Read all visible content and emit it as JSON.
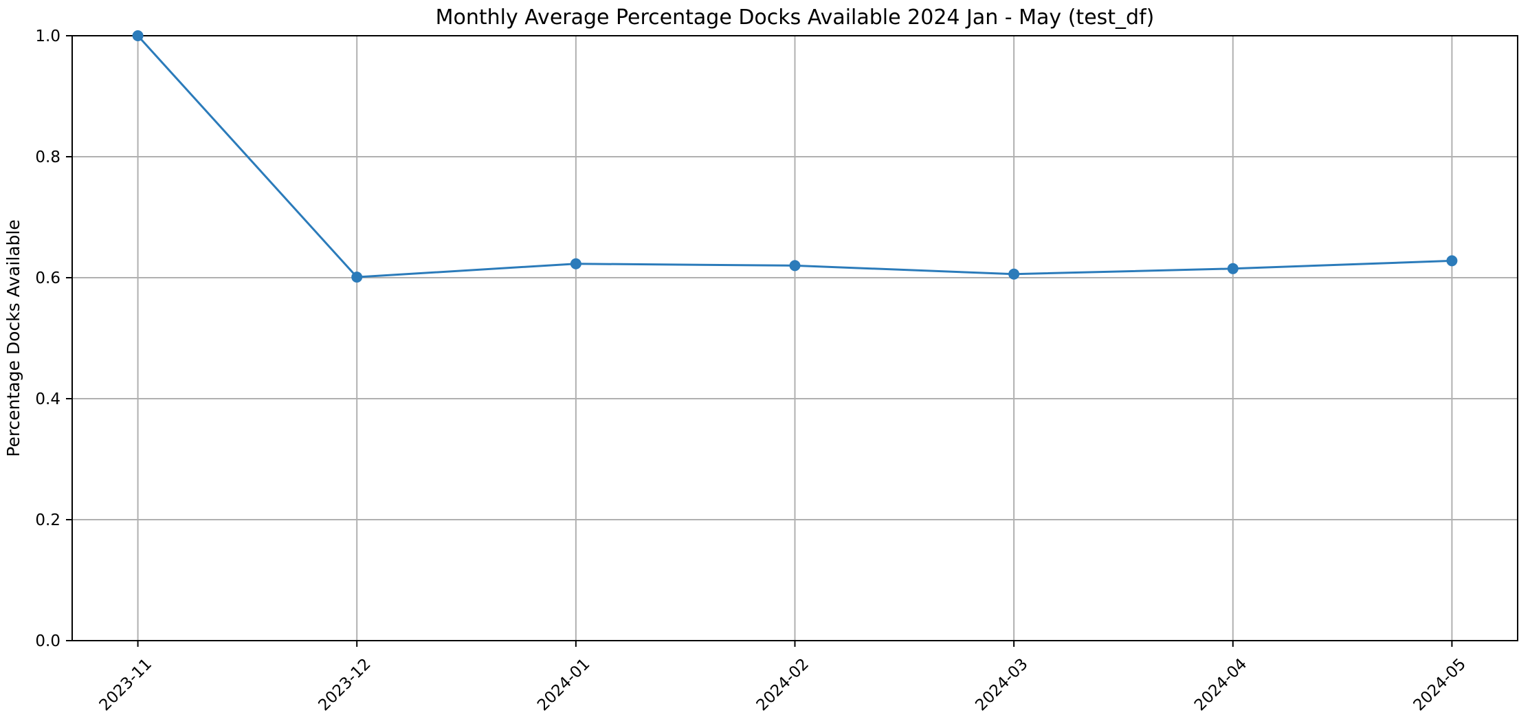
{
  "chart_data": {
    "type": "line",
    "title": "Monthly Average Percentage Docks Available 2024 Jan - May (test_df)",
    "xlabel": "",
    "ylabel": "Percentage Docks Available",
    "categories": [
      "2023-11",
      "2023-12",
      "2024-01",
      "2024-02",
      "2024-03",
      "2024-04",
      "2024-05"
    ],
    "series": [
      {
        "values": [
          1.0,
          0.601,
          0.623,
          0.62,
          0.606,
          0.615,
          0.628
        ],
        "color": "#2b7bba",
        "marker": "circle"
      }
    ],
    "ylim": [
      0.0,
      1.0
    ],
    "yticks": [
      0.0,
      0.2,
      0.4,
      0.6,
      0.8,
      1.0
    ],
    "ytick_labels": [
      "0.0",
      "0.2",
      "0.4",
      "0.6",
      "0.8",
      "1.0"
    ],
    "grid": true,
    "legend": "none"
  }
}
